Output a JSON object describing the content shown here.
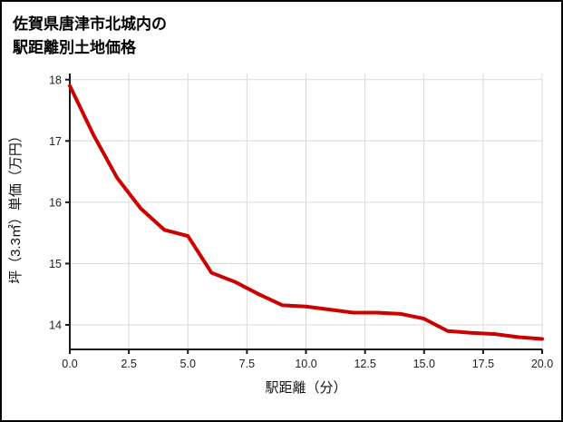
{
  "page": {
    "title_line1": "佐賀県唐津市北城内の",
    "title_line2": "駅距離別土地価格"
  },
  "chart_data": {
    "type": "line",
    "title": "佐賀県唐津市北城内の駅距離別土地価格",
    "xlabel": "駅距離（分）",
    "ylabel": "坪（3.3㎡）単価（万円）",
    "x": [
      0,
      1,
      2,
      3,
      4,
      5,
      6,
      7,
      8,
      9,
      10,
      11,
      12,
      13,
      14,
      15,
      16,
      17,
      18,
      19,
      20
    ],
    "values": [
      17.9,
      17.1,
      16.4,
      15.9,
      15.55,
      15.45,
      14.85,
      14.7,
      14.5,
      14.32,
      14.3,
      14.25,
      14.2,
      14.2,
      14.18,
      14.1,
      13.9,
      13.87,
      13.85,
      13.8,
      13.77
    ],
    "xlim": [
      0,
      20
    ],
    "ylim": [
      13.6,
      18.1
    ],
    "x_ticks": [
      0,
      2.5,
      5,
      7.5,
      10,
      12.5,
      15,
      17.5,
      20
    ],
    "x_tick_labels": [
      "0.0",
      "2.5",
      "5.0",
      "7.5",
      "10.0",
      "12.5",
      "15.0",
      "17.5",
      "20.0"
    ],
    "y_ticks": [
      14,
      15,
      16,
      17,
      18
    ],
    "y_tick_labels": [
      "14",
      "15",
      "16",
      "17",
      "18"
    ],
    "grid": true,
    "legend": "none",
    "line_color": "#cc0000",
    "grid_color": "#d9d9d9",
    "axis_color": "#1a1a1a",
    "tick_label_color": "#222222"
  }
}
